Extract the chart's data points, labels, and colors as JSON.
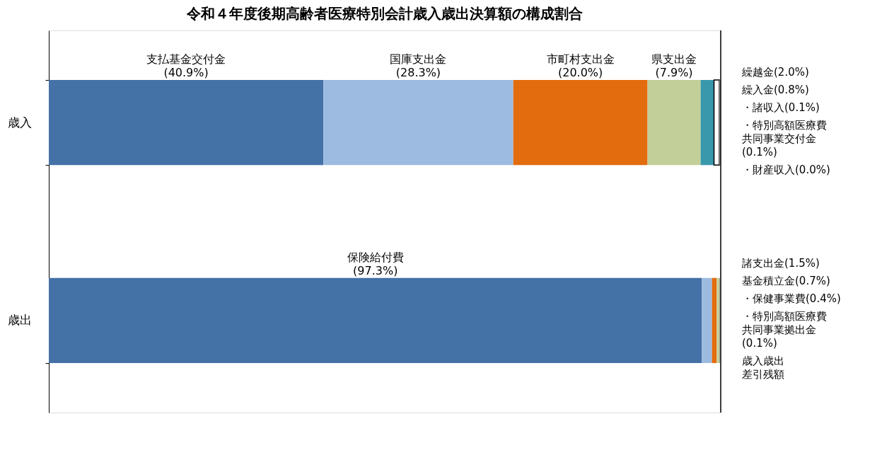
{
  "chart_data": {
    "type": "bar",
    "title": "令和４年度後期高齢者医療特別会計歳入歳出決算額の構成割合",
    "categories": [
      "歳入",
      "歳出"
    ],
    "orientation": "horizontal",
    "stacked": true,
    "tick_labels": "y",
    "grid": false,
    "legend": false,
    "series": [
      {
        "name": "支払基金交付金",
        "color": "#4471a6",
        "values": [
          40.9,
          null
        ],
        "value_labels": [
          "(40.9%)",
          null
        ]
      },
      {
        "name": "国庫支出金",
        "color": "#9dbbe0",
        "values": [
          28.3,
          null
        ],
        "value_labels": [
          "(28.3%)",
          null
        ]
      },
      {
        "name": "市町村支出金",
        "color": "#e36c0e",
        "values": [
          20.0,
          null
        ],
        "value_labels": [
          "(20.0%)",
          null
        ]
      },
      {
        "name": "県支出金",
        "color": "#c3cf98",
        "values": [
          7.9,
          null
        ],
        "value_labels": [
          "(7.9%)",
          null
        ]
      },
      {
        "name": "繰越金",
        "color": "#3a98ad",
        "values": [
          2.0,
          null
        ],
        "value_labels": [
          "(2.0%)",
          null
        ]
      },
      {
        "name": "繰入金",
        "color": "#ffffff",
        "values": [
          0.8,
          null
        ],
        "value_labels": [
          "(0.8%)",
          null
        ]
      },
      {
        "name": "・諸収入",
        "values": [
          0.1,
          null
        ],
        "value_labels": [
          "(0.1%)",
          null
        ]
      },
      {
        "name": "・特別高額医療費共同事業交付金",
        "values": [
          0.1,
          null
        ],
        "value_labels": [
          "(0.1%)",
          null
        ]
      },
      {
        "name": "・財産収入",
        "values": [
          0.0,
          null
        ],
        "value_labels": [
          "(0.0%)",
          null
        ]
      },
      {
        "name": "保険給付費",
        "color": "#4471a6",
        "values": [
          null,
          97.3
        ],
        "value_labels": [
          null,
          "(97.3%)"
        ]
      },
      {
        "name": "諸支出金",
        "color": "#9dbbe0",
        "values": [
          null,
          1.5
        ],
        "value_labels": [
          null,
          "(1.5%)"
        ]
      },
      {
        "name": "基金積立金",
        "color": "#e36c0e",
        "values": [
          null,
          0.7
        ],
        "value_labels": [
          null,
          "(0.7%)"
        ]
      },
      {
        "name": "・保健事業費",
        "color": "#c3cf98",
        "values": [
          null,
          0.4
        ],
        "value_labels": [
          null,
          "(0.4%)"
        ]
      },
      {
        "name": "・特別高額医療費共同事業拠出金",
        "values": [
          null,
          0.1
        ],
        "value_labels": [
          null,
          "(0.1%)"
        ]
      },
      {
        "name": "歳入歳出差引残額",
        "values": [
          null,
          null
        ],
        "value_labels": [
          null,
          null
        ]
      }
    ]
  }
}
